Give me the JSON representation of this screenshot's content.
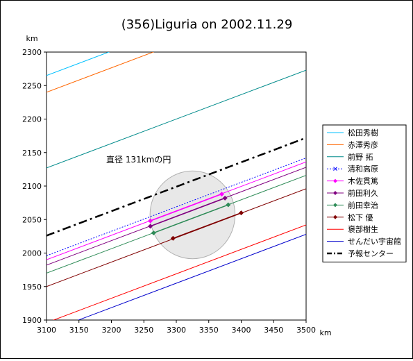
{
  "chart_data": {
    "type": "line",
    "title": "(356)Liguria on 2002.11.29",
    "xlabel": "km",
    "ylabel": "km",
    "xlim": [
      3100,
      3500
    ],
    "ylim": [
      1900,
      2300
    ],
    "xticks": [
      3100,
      3150,
      3200,
      3250,
      3300,
      3350,
      3400,
      3450,
      3500
    ],
    "yticks": [
      1900,
      1950,
      2000,
      2050,
      2100,
      2150,
      2200,
      2250,
      2300
    ],
    "grid": false,
    "legend_position": "right",
    "slope": 0.365,
    "annotation": "直径 131kmの円",
    "circle": {
      "cx": 3325,
      "cy": 2057,
      "r": 65.5
    },
    "series": [
      {
        "name": "松田秀樹",
        "color": "#00c0ff",
        "style": "solid",
        "y_at_3100": 2265
      },
      {
        "name": "赤澤秀彦",
        "color": "#ff6600",
        "style": "solid",
        "y_at_3100": 2240
      },
      {
        "name": "前野 拓",
        "color": "#008b8b",
        "style": "solid",
        "y_at_3100": 2127
      },
      {
        "name": "清和高原",
        "color": "#0000ff",
        "style": "dotted",
        "y_at_3100": 1996
      },
      {
        "name": "木佐貫篤",
        "color": "#ff00ff",
        "style": "solid",
        "y_at_3100": 1990,
        "marker": "diamond",
        "observed": [
          [
            3260,
            2048
          ],
          [
            3370,
            2088
          ]
        ]
      },
      {
        "name": "前田利久",
        "color": "#800080",
        "style": "solid",
        "y_at_3100": 1982,
        "marker": "diamond",
        "observed": [
          [
            3260,
            2040
          ],
          [
            3375,
            2082
          ]
        ]
      },
      {
        "name": "前田幸治",
        "color": "#2e8b57",
        "style": "solid",
        "y_at_3100": 1970,
        "marker": "diamond",
        "observed": [
          [
            3265,
            2030
          ],
          [
            3380,
            2072
          ]
        ]
      },
      {
        "name": "松下 優",
        "color": "#800000",
        "style": "solid",
        "y_at_3100": 1950,
        "marker": "diamond",
        "observed": [
          [
            3295,
            2022
          ],
          [
            3400,
            2060
          ]
        ]
      },
      {
        "name": "褒部樹生",
        "color": "#ff0000",
        "style": "solid",
        "y_at_3100": 1896
      },
      {
        "name": "せんだい宇宙館",
        "color": "#0000cc",
        "style": "solid",
        "y_at_3100": 1882
      },
      {
        "name": "予報センター",
        "color": "#000000",
        "style": "dashdot",
        "y_at_3100": 2026
      }
    ]
  }
}
